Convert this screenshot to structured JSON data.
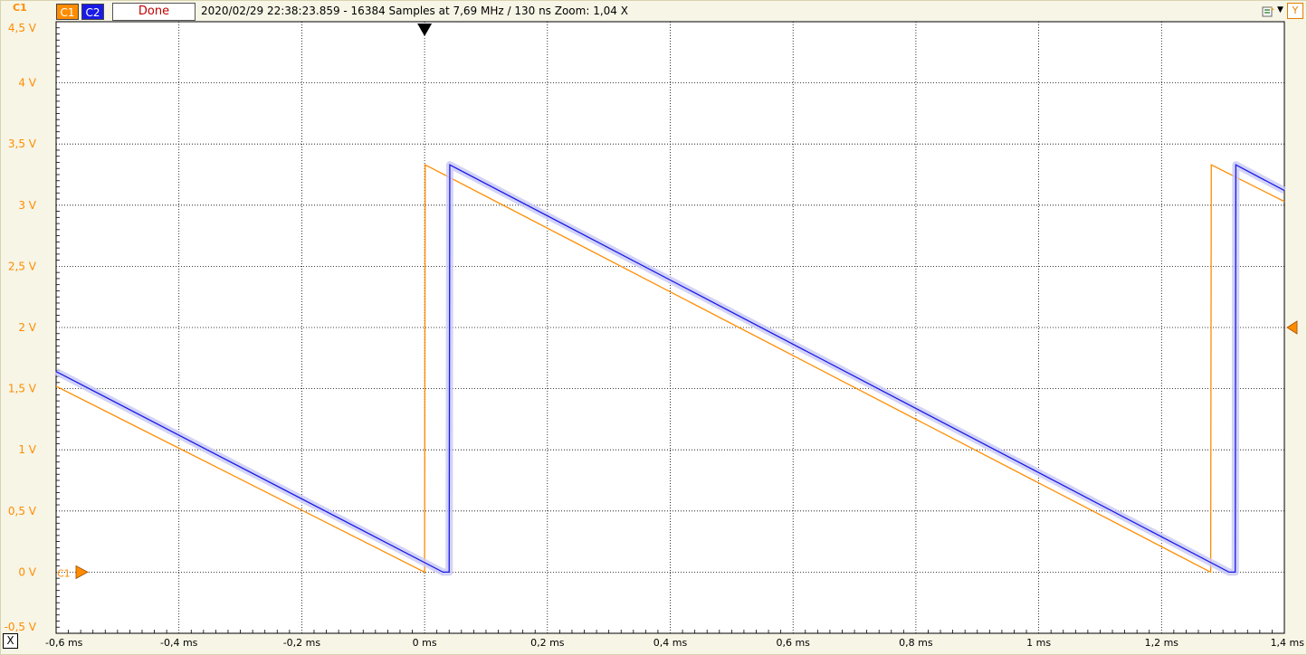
{
  "header": {
    "channel_label_left": "C1",
    "c1_button": "C1",
    "c2_button": "C2",
    "status": "Done",
    "info": "2020/02/29 22:38:23.859 - 16384 Samples at 7,69 MHz / 130 ns Zoom: 1,04 X",
    "y_button": "Y",
    "close_button": "X",
    "c1_marker_label": "C1"
  },
  "colors": {
    "c1": "#ff8c00",
    "c2": "#1a1ae6",
    "c2_halo": "#c8c8f5",
    "grid": "#000000",
    "background": "#ffffff",
    "axis_text": "#ff8c00"
  },
  "icons": [
    "tool-icon",
    "chevron-down-icon",
    "trigger-marker-icon",
    "level-marker-icon",
    "c1-ground-marker-icon"
  ],
  "chart_data": {
    "type": "line",
    "title": "",
    "xlabel": "",
    "ylabel": "",
    "xlim": [
      -0.6,
      1.4
    ],
    "ylim": [
      -0.5,
      4.5
    ],
    "x_unit": "ms",
    "y_unit": "V",
    "x_ticks": [
      -0.6,
      -0.4,
      -0.2,
      0,
      0.2,
      0.4,
      0.6,
      0.8,
      1,
      1.2,
      1.4
    ],
    "x_tick_labels": [
      "-0,6 ms",
      "-0,4 ms",
      "-0,2 ms",
      "0 ms",
      "0,2 ms",
      "0,4 ms",
      "0,6 ms",
      "0,8 ms",
      "1 ms",
      "1,2 ms",
      "1,4 ms"
    ],
    "y_ticks": [
      -0.5,
      0,
      0.5,
      1,
      1.5,
      2,
      2.5,
      3,
      3.5,
      4,
      4.5
    ],
    "y_tick_labels": [
      "-0,5 V",
      "0 V",
      "0,5 V",
      "1 V",
      "1,5 V",
      "2 V",
      "2,5 V",
      "3 V",
      "3,5 V",
      "4 V",
      "4,5 V"
    ],
    "grid": true,
    "trigger_time": 0,
    "trigger_level": 2,
    "series": [
      {
        "name": "C1",
        "color": "#ff8c00",
        "points": [
          [
            -0.6,
            1.52
          ],
          [
            0,
            0
          ],
          [
            0.001,
            3.33
          ],
          [
            1.28,
            0
          ],
          [
            1.281,
            3.33
          ],
          [
            1.4,
            3.03
          ]
        ]
      },
      {
        "name": "C2",
        "color": "#1a1ae6",
        "points": [
          [
            -0.6,
            1.64
          ],
          [
            0.03,
            0
          ],
          [
            0.04,
            0
          ],
          [
            0.041,
            3.33
          ],
          [
            1.31,
            0
          ],
          [
            1.32,
            0
          ],
          [
            1.321,
            3.33
          ],
          [
            1.4,
            3.12
          ]
        ]
      }
    ]
  }
}
